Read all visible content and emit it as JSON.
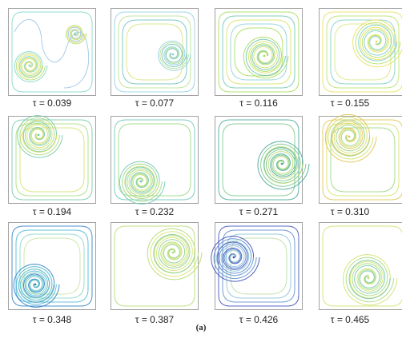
{
  "figure_label": "(a)",
  "panels": [
    {
      "caption": "τ = 0.039",
      "colors": [
        "#7fd6c6",
        "#b8e07a",
        "#e6df6a",
        "#9ec7e8"
      ]
    },
    {
      "caption": "τ = 0.077",
      "colors": [
        "#8fd0e0",
        "#b9e08f",
        "#6ec0b8",
        "#d8e27a"
      ]
    },
    {
      "caption": "τ = 0.116",
      "colors": [
        "#a6dc5a",
        "#6fc7b2",
        "#d6e264",
        "#8ad0d8"
      ]
    },
    {
      "caption": "τ = 0.155",
      "colors": [
        "#e7e05c",
        "#b8e06a",
        "#7ccfc4",
        "#d9e57f"
      ]
    },
    {
      "caption": "τ = 0.194",
      "colors": [
        "#74c9a8",
        "#a9dc78",
        "#d8e06a",
        "#5fb8c8"
      ]
    },
    {
      "caption": "τ = 0.232",
      "colors": [
        "#6cc6b9",
        "#9ad67d",
        "#c9e06e",
        "#4fb4a8"
      ]
    },
    {
      "caption": "τ = 0.271",
      "colors": [
        "#47a898",
        "#7cc78c",
        "#b4dc70",
        "#d9e36a"
      ]
    },
    {
      "caption": "τ = 0.310",
      "colors": [
        "#e0c34d",
        "#d5e06a",
        "#9ad583",
        "#6cc4bd"
      ]
    },
    {
      "caption": "τ = 0.348",
      "colors": [
        "#2f7fc4",
        "#4ab8d6",
        "#8ad6c4",
        "#c7e3a0"
      ]
    },
    {
      "caption": "τ = 0.387",
      "colors": [
        "#b5da6f",
        "#d7e36a",
        "#8cd08f",
        "#6bc6b6"
      ]
    },
    {
      "caption": "τ = 0.426",
      "colors": [
        "#3d4fb8",
        "#5f8ad0",
        "#89c3d8",
        "#b7dda0"
      ]
    },
    {
      "caption": "τ = 0.465",
      "colors": [
        "#d0e26a",
        "#a9d97c",
        "#76c9a9",
        "#5cb8c6"
      ]
    }
  ]
}
